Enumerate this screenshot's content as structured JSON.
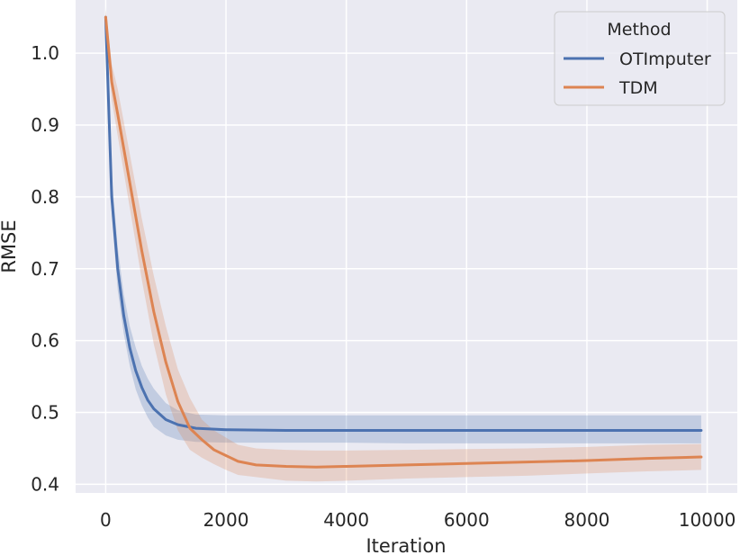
{
  "chart_data": {
    "type": "line",
    "title": "",
    "xlabel": "Iteration",
    "ylabel": "RMSE",
    "xlim": [
      -500,
      10500
    ],
    "ylim": [
      0.388,
      1.074
    ],
    "xticks": [
      0,
      2000,
      4000,
      6000,
      8000,
      10000
    ],
    "yticks": [
      0.4,
      0.5,
      0.6,
      0.7,
      0.8,
      0.9,
      1.0
    ],
    "xtick_labels": [
      "0",
      "2000",
      "4000",
      "6000",
      "8000",
      "10000"
    ],
    "ytick_labels": [
      "0.4",
      "0.5",
      "0.6",
      "0.7",
      "0.8",
      "0.9",
      "1.0"
    ],
    "grid": true,
    "background": "#eaeaf2",
    "legend": {
      "title": "Method",
      "placement": "top-right"
    },
    "series": [
      {
        "name": "OTImputer",
        "color": "#4c72b0",
        "x": [
          0,
          100,
          200,
          300,
          400,
          500,
          600,
          700,
          800,
          1000,
          1200,
          1500,
          2000,
          3000,
          4000,
          5000,
          6000,
          7000,
          8000,
          9000,
          9900
        ],
        "y": [
          1.05,
          0.8,
          0.7,
          0.635,
          0.59,
          0.558,
          0.535,
          0.517,
          0.505,
          0.49,
          0.483,
          0.478,
          0.476,
          0.475,
          0.475,
          0.475,
          0.475,
          0.475,
          0.475,
          0.475,
          0.475
        ],
        "upper": [
          1.065,
          0.83,
          0.73,
          0.665,
          0.62,
          0.59,
          0.565,
          0.547,
          0.533,
          0.513,
          0.503,
          0.497,
          0.496,
          0.496,
          0.496,
          0.496,
          0.496,
          0.496,
          0.496,
          0.496,
          0.496
        ],
        "lower": [
          1.035,
          0.775,
          0.67,
          0.61,
          0.565,
          0.532,
          0.51,
          0.493,
          0.48,
          0.468,
          0.462,
          0.459,
          0.458,
          0.458,
          0.458,
          0.457,
          0.457,
          0.457,
          0.457,
          0.457,
          0.457
        ]
      },
      {
        "name": "TDM",
        "color": "#dd8452",
        "x": [
          0,
          100,
          200,
          400,
          600,
          800,
          1000,
          1200,
          1400,
          1600,
          1800,
          2000,
          2200,
          2500,
          3000,
          3500,
          4000,
          5000,
          6000,
          7000,
          8000,
          9000,
          9900
        ],
        "y": [
          1.05,
          0.96,
          0.915,
          0.82,
          0.725,
          0.64,
          0.57,
          0.515,
          0.478,
          0.462,
          0.448,
          0.44,
          0.432,
          0.427,
          0.425,
          0.424,
          0.425,
          0.427,
          0.429,
          0.431,
          0.433,
          0.436,
          0.438
        ],
        "upper": [
          1.06,
          0.985,
          0.95,
          0.86,
          0.77,
          0.69,
          0.62,
          0.56,
          0.52,
          0.49,
          0.475,
          0.465,
          0.455,
          0.45,
          0.448,
          0.447,
          0.447,
          0.448,
          0.449,
          0.45,
          0.452,
          0.455,
          0.456
        ],
        "lower": [
          1.04,
          0.935,
          0.885,
          0.785,
          0.685,
          0.595,
          0.525,
          0.475,
          0.448,
          0.437,
          0.428,
          0.42,
          0.413,
          0.41,
          0.405,
          0.404,
          0.405,
          0.408,
          0.41,
          0.412,
          0.415,
          0.418,
          0.42
        ]
      }
    ]
  }
}
